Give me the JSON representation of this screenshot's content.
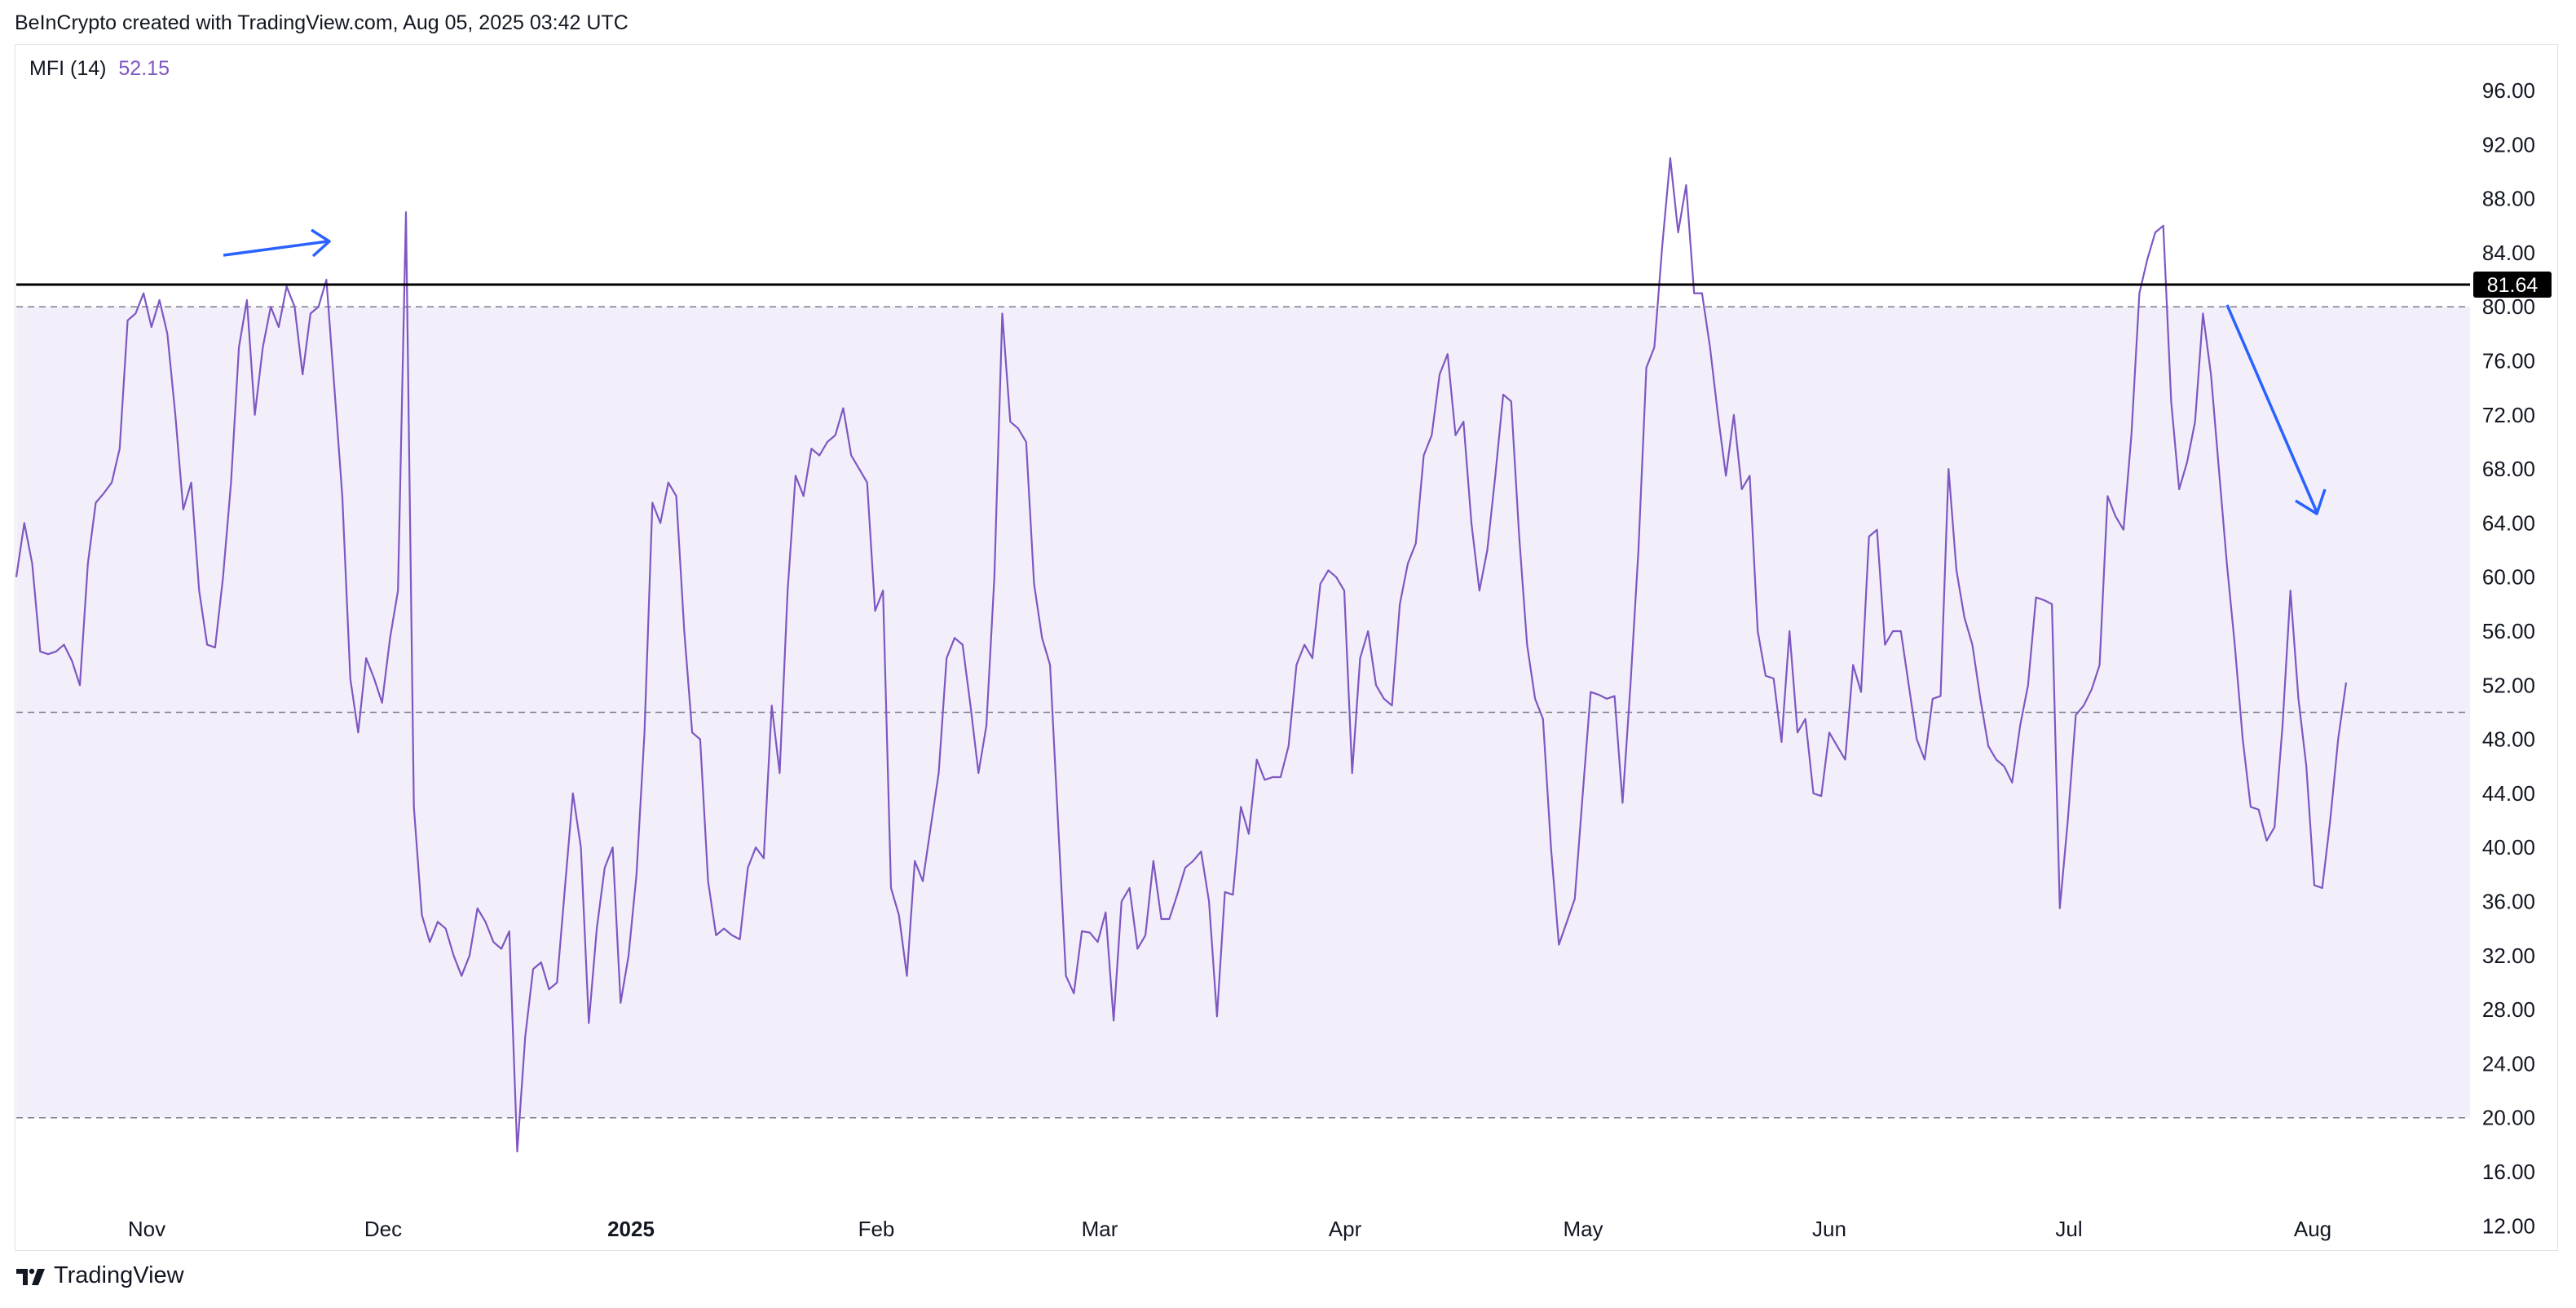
{
  "header": {
    "attribution": "BeInCrypto created with TradingView.com, Aug 05, 2025 03:42 UTC"
  },
  "legend": {
    "indicator": "MFI (14)",
    "value": "52.15",
    "value_color": "#7e57c2"
  },
  "footer": {
    "brand": "TradingView",
    "logo_mark": "17"
  },
  "colors": {
    "line": "#7e57c2",
    "band_fill": "#f3effa",
    "dashed": "#787b86",
    "level_line": "#000000",
    "arrows": "#2962ff"
  },
  "chart_data": {
    "type": "line",
    "title": "MFI (14)",
    "ylim": [
      10,
      98
    ],
    "y_ticks": [
      "96.00",
      "92.00",
      "88.00",
      "84.00",
      "80.00",
      "76.00",
      "72.00",
      "68.00",
      "64.00",
      "60.00",
      "56.00",
      "52.00",
      "48.00",
      "44.00",
      "40.00",
      "36.00",
      "32.00",
      "28.00",
      "24.00",
      "20.00",
      "16.00",
      "12.00"
    ],
    "x_labels": [
      "Nov",
      "Dec",
      "2025",
      "Feb",
      "Mar",
      "Apr",
      "May",
      "Jun",
      "Jul",
      "Aug"
    ],
    "bands": {
      "upper": 80,
      "middle": 50,
      "lower": 20
    },
    "level_line": {
      "value": 81.64,
      "label": "81.64"
    },
    "series": [
      {
        "values": [
          60,
          64,
          61,
          54.5,
          54.3,
          54.5,
          55,
          53.8,
          52,
          61,
          65.5,
          66.2,
          67,
          69.5,
          79,
          79.5,
          81,
          78.5,
          80.5,
          78,
          72,
          65,
          67,
          59,
          55,
          54.8,
          60,
          67,
          77,
          80.5,
          72,
          77,
          80,
          78.5,
          81.5,
          80,
          75,
          79.5,
          80,
          82,
          74,
          66,
          52.5,
          48.5,
          54,
          52.5,
          50.7,
          55.5,
          59,
          87,
          43,
          35,
          33,
          34.5,
          34,
          32,
          30.5,
          32,
          35.5,
          34.5,
          33,
          32.5,
          33.8,
          17.5,
          26,
          31,
          31.5,
          29.5,
          30,
          37,
          44,
          40,
          27,
          34,
          38.5,
          40,
          28.5,
          32,
          38,
          48.5,
          65.5,
          64,
          67,
          66,
          56,
          48.5,
          48,
          37.5,
          33.5,
          34,
          33.5,
          33.2,
          38.5,
          40,
          39.2,
          50.5,
          45.5,
          59,
          67.5,
          66,
          69.5,
          69,
          70,
          70.5,
          72.5,
          69,
          68,
          67,
          57.5,
          59,
          37,
          35,
          30.5,
          39,
          37.5,
          41.5,
          45.5,
          54,
          55.5,
          55,
          50.5,
          45.5,
          49,
          60,
          79.5,
          71.5,
          71,
          70,
          59.5,
          55.5,
          53.5,
          42,
          30.5,
          29.2,
          33.8,
          33.7,
          33,
          35.2,
          27.2,
          36,
          37,
          32.5,
          33.5,
          39,
          34.7,
          34.7,
          36.5,
          38.5,
          39,
          39.7,
          36,
          27.5,
          36.7,
          36.5,
          43,
          41,
          46.5,
          45,
          45.2,
          45.2,
          47.5,
          53.5,
          55,
          54,
          59.5,
          60.5,
          60,
          59,
          45.5,
          54,
          56,
          52,
          51,
          50.5,
          58,
          61,
          62.5,
          69,
          70.5,
          75,
          76.5,
          70.5,
          71.5,
          64,
          59,
          62,
          67.5,
          73.5,
          73,
          63,
          55,
          51,
          49.5,
          40,
          32.8,
          34.5,
          36.2,
          44,
          51.5,
          51.3,
          51,
          51.2,
          43.3,
          52,
          62,
          75.5,
          77,
          84.5,
          91,
          85.5,
          89,
          81,
          81,
          77,
          72,
          67.5,
          72,
          66.5,
          67.5,
          56,
          52.7,
          52.5,
          47.8,
          56,
          48.5,
          49.5,
          44,
          43.8,
          48.5,
          47.5,
          46.5,
          53.5,
          51.5,
          63,
          63.5,
          55,
          56,
          56,
          52,
          48,
          46.5,
          51,
          51.2,
          68,
          60.5,
          57,
          55,
          51,
          47.5,
          46.5,
          46,
          44.8,
          49,
          52,
          58.5,
          58.3,
          58,
          35.5,
          42,
          49.8,
          50.5,
          51.7,
          53.5,
          66,
          64.5,
          63.5,
          70.5,
          81,
          83.5,
          85.5,
          86,
          73,
          66.5,
          68.5,
          71.5,
          79.5,
          75,
          68,
          61,
          55,
          48,
          43,
          42.8,
          40.5,
          41.5,
          49,
          59,
          51,
          46,
          37.2,
          37,
          42,
          48,
          52.2
        ]
      }
    ]
  }
}
